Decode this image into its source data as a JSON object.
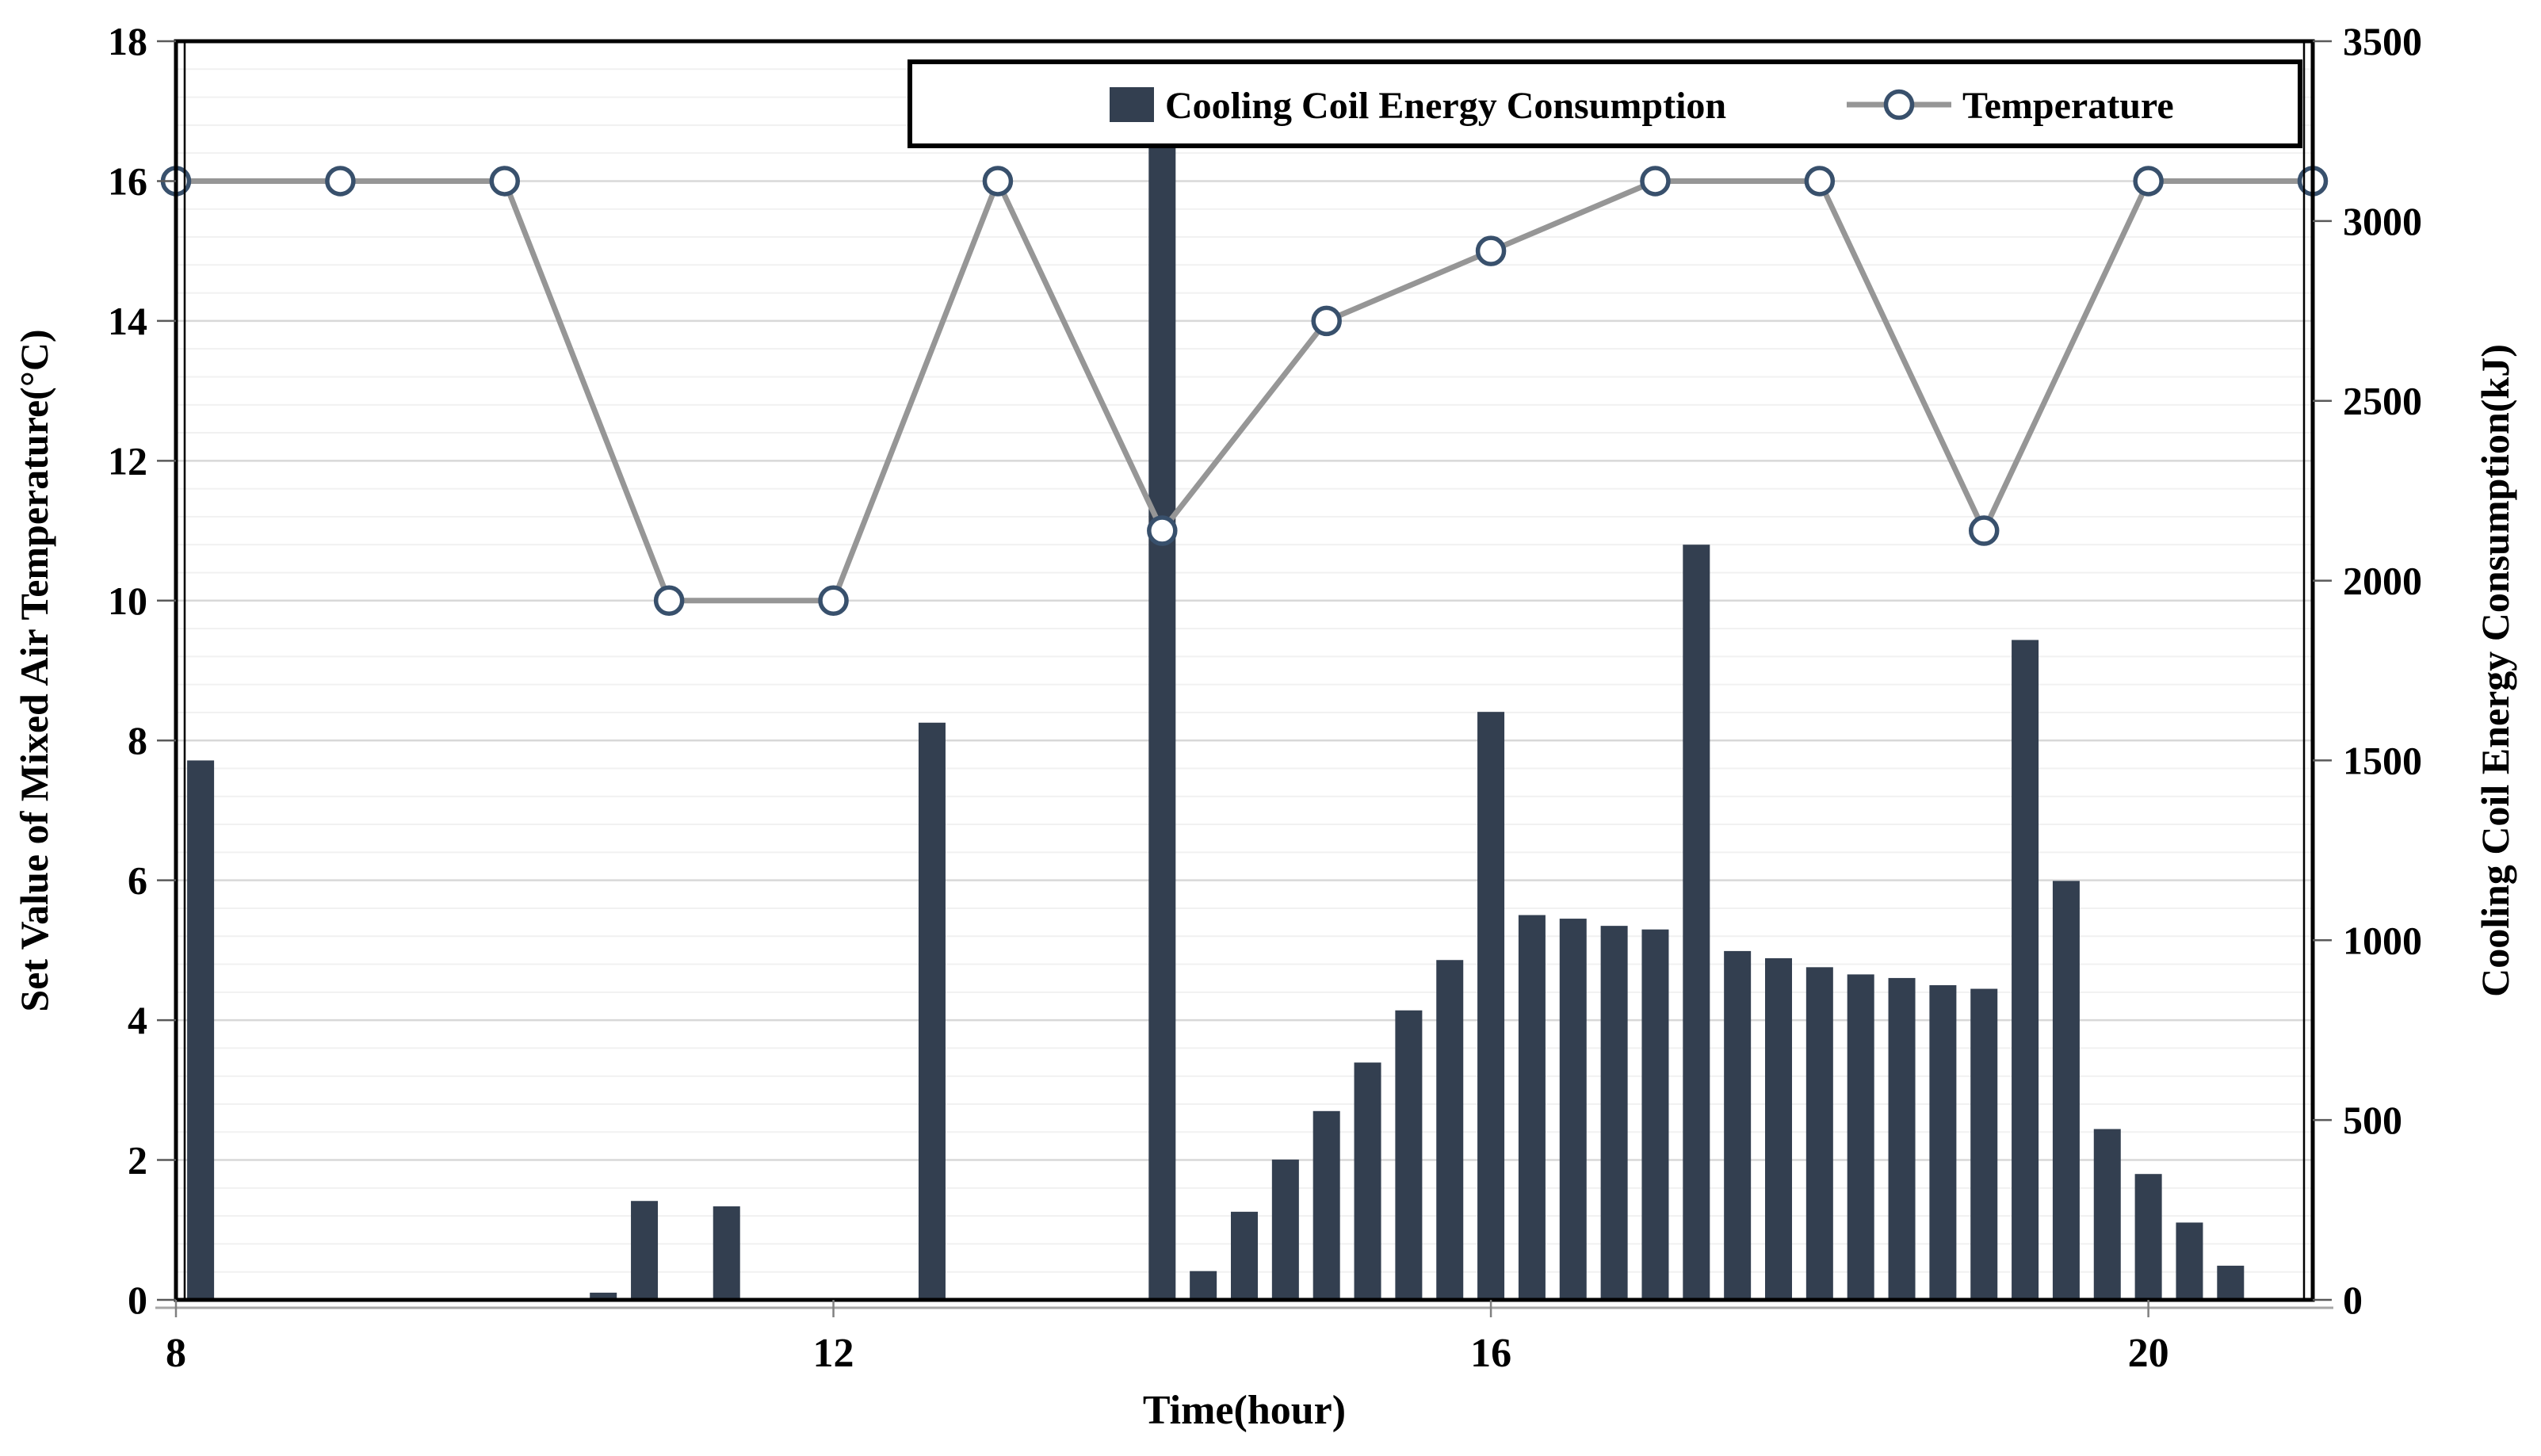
{
  "chart_data": {
    "type": "combo-bar-line-dual-axis",
    "title": "",
    "x_axis": {
      "label": "Time(hour)",
      "min": 8,
      "max": 21,
      "tick_values": [
        8,
        12,
        16,
        20
      ],
      "tick_labels": [
        "8",
        "12",
        "16",
        "20"
      ]
    },
    "y_axis_left": {
      "label": "Set Value of Mixed Air Temperature(°C)",
      "min": 0,
      "max": 18,
      "major_step": 2,
      "minor_step": 0.4,
      "tick_labels": [
        "0",
        "2",
        "4",
        "6",
        "8",
        "10",
        "12",
        "14",
        "16",
        "18"
      ]
    },
    "y_axis_right": {
      "label": "Cooling Coil Energy Consumption(kJ)",
      "min": 0,
      "max": 3500,
      "major_step": 500,
      "tick_labels": [
        "0",
        "500",
        "1000",
        "1500",
        "2000",
        "2500",
        "3000",
        "3500"
      ]
    },
    "grid": {
      "horizontal_minor": true,
      "horizontal_major": true,
      "vertical": false
    },
    "legend": {
      "position": "top-inside",
      "border": true,
      "items": [
        {
          "label": "Cooling Coil Energy Consumption",
          "swatch": "bar-square"
        },
        {
          "label": "Temperature",
          "swatch": "line-circle-marker"
        }
      ]
    },
    "series": [
      {
        "name": "Cooling Coil Energy Consumption",
        "type": "bar",
        "axis": "right",
        "unit": "kJ",
        "data": [
          [
            8.15,
            1500
          ],
          [
            10.6,
            20
          ],
          [
            10.85,
            275
          ],
          [
            11.35,
            260
          ],
          [
            12.6,
            1605
          ],
          [
            14.0,
            3240
          ],
          [
            14.25,
            80
          ],
          [
            14.5,
            245
          ],
          [
            14.75,
            390
          ],
          [
            15.0,
            525
          ],
          [
            15.25,
            660
          ],
          [
            15.5,
            805
          ],
          [
            15.75,
            945
          ],
          [
            16.0,
            1635
          ],
          [
            16.25,
            1070
          ],
          [
            16.5,
            1060
          ],
          [
            16.75,
            1040
          ],
          [
            17.0,
            1030
          ],
          [
            17.25,
            2100
          ],
          [
            17.5,
            970
          ],
          [
            17.75,
            950
          ],
          [
            18.0,
            925
          ],
          [
            18.25,
            905
          ],
          [
            18.5,
            895
          ],
          [
            18.75,
            875
          ],
          [
            19.0,
            865
          ],
          [
            19.25,
            1835
          ],
          [
            19.5,
            1165
          ],
          [
            19.75,
            475
          ],
          [
            20.0,
            350
          ],
          [
            20.25,
            215
          ],
          [
            20.5,
            95
          ]
        ]
      },
      {
        "name": "Temperature",
        "type": "line",
        "axis": "left",
        "unit": "°C",
        "marker": "circle",
        "data": [
          [
            8,
            16
          ],
          [
            9,
            16
          ],
          [
            10,
            16
          ],
          [
            11,
            10
          ],
          [
            12,
            10
          ],
          [
            13,
            16
          ],
          [
            14,
            11
          ],
          [
            15,
            14
          ],
          [
            16,
            15
          ],
          [
            17,
            16
          ],
          [
            18,
            16
          ],
          [
            19,
            11
          ],
          [
            20,
            16
          ],
          [
            21,
            16
          ]
        ]
      }
    ]
  },
  "colors": {
    "bar_fill": "#333f50",
    "line_stroke": "#969696",
    "marker_stroke": "#38506c",
    "marker_fill": "#ffffff",
    "grid_minor": "#f1f1f1",
    "grid_major": "#d8d8d8",
    "axis_border": "#000000",
    "tick_stroke": "#595959",
    "x_tick_stroke": "#808080",
    "sub_axis_line": "#a6a6a6",
    "legend_background": "#ffffff"
  }
}
